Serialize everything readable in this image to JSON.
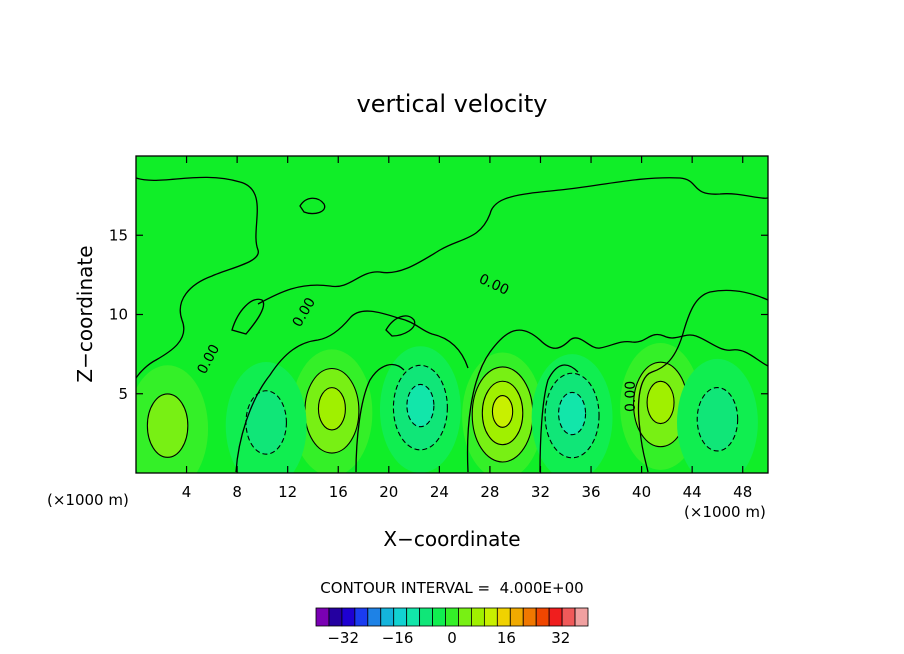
{
  "chart_data": {
    "type": "heatmap",
    "title": "vertical velocity",
    "xlabel": "X−coordinate",
    "ylabel": "Z−coordinate",
    "x_unit": "(×1000 m)",
    "xlim": [
      0,
      50
    ],
    "ylim": [
      0,
      20
    ],
    "x_ticks": [
      4,
      8,
      12,
      16,
      20,
      24,
      28,
      32,
      36,
      40,
      44,
      48
    ],
    "y_ticks": [
      5,
      10,
      15
    ],
    "contour_interval_label": "CONTOUR INTERVAL =  4.000E+00",
    "contour_labels": [
      "0.00",
      "0.00",
      "0.00",
      "0.00"
    ],
    "cells": [
      {
        "x": 15.5,
        "z": 3.8,
        "extremum": 12,
        "sign": "up"
      },
      {
        "x": 29.0,
        "z": 3.6,
        "extremum": 14,
        "sign": "up"
      },
      {
        "x": 41.5,
        "z": 4.2,
        "extremum": 9,
        "sign": "up"
      },
      {
        "x": 2.5,
        "z": 2.8,
        "extremum": 6,
        "sign": "up"
      },
      {
        "x": 10.3,
        "z": 3.0,
        "extremum": -8,
        "sign": "down"
      },
      {
        "x": 22.5,
        "z": 4.0,
        "extremum": -10,
        "sign": "down"
      },
      {
        "x": 34.5,
        "z": 3.5,
        "extremum": -10,
        "sign": "down"
      },
      {
        "x": 46.0,
        "z": 3.2,
        "extremum": -8,
        "sign": "down"
      }
    ],
    "colorbar": {
      "levels": [
        -40,
        -36,
        -32,
        -28,
        -24,
        -20,
        -16,
        -12,
        -8,
        -4,
        0,
        4,
        8,
        12,
        16,
        20,
        24,
        28,
        32,
        36,
        40
      ],
      "colors": [
        "#7a00b4",
        "#2400a0",
        "#1e00d2",
        "#1a3cf0",
        "#1e82e6",
        "#14b4dc",
        "#12d2d2",
        "#12e6aa",
        "#10e678",
        "#10ee50",
        "#34f028",
        "#78f014",
        "#a0f000",
        "#c8f000",
        "#f0d200",
        "#f0aa00",
        "#f07800",
        "#f04600",
        "#f01e1e",
        "#f05a5a",
        "#f0a0a0"
      ],
      "tick_labels": [
        "−32",
        "−16",
        "0",
        "16",
        "32"
      ],
      "tick_values": [
        -32,
        -16,
        0,
        16,
        32
      ]
    }
  }
}
